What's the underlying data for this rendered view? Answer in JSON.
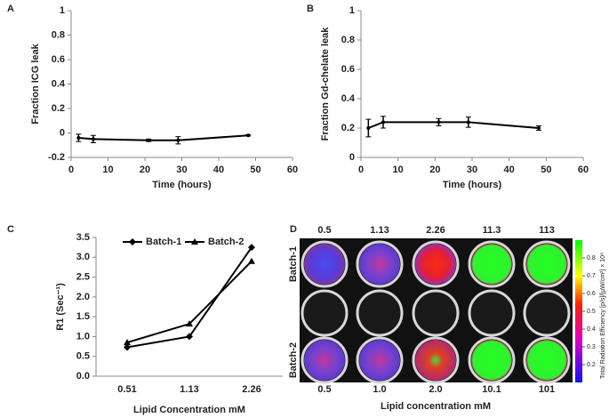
{
  "chart_data": [
    {
      "type": "line",
      "panel": "A",
      "ylabel": "Fraction ICG leak",
      "xlabel": "Time (hours)",
      "x": [
        2,
        6,
        21,
        29,
        48
      ],
      "series": [
        {
          "color": "#000000",
          "values": [
            -0.04,
            -0.05,
            -0.06,
            -0.06,
            -0.02
          ],
          "errors": [
            0.03,
            0.03,
            0.01,
            0.03,
            0.005
          ]
        }
      ],
      "xlim": [
        0,
        60
      ],
      "xticks": [
        0,
        10,
        20,
        30,
        40,
        50,
        60
      ],
      "ylim": [
        -0.2,
        1
      ],
      "yticks": [
        -0.2,
        0,
        0.2,
        0.4,
        0.6,
        0.8,
        1
      ]
    },
    {
      "type": "line",
      "panel": "B",
      "ylabel": "Fraction Gd-chelate leak",
      "xlabel": "Time (hours)",
      "x": [
        2,
        6,
        21,
        29,
        48
      ],
      "series": [
        {
          "color": "#000000",
          "values": [
            0.2,
            0.24,
            0.24,
            0.24,
            0.2
          ],
          "errors": [
            0.06,
            0.04,
            0.025,
            0.035,
            0.015
          ]
        }
      ],
      "xlim": [
        0,
        60
      ],
      "xticks": [
        0,
        10,
        20,
        30,
        40,
        50,
        60
      ],
      "ylim": [
        0,
        1
      ],
      "yticks": [
        0,
        0.2,
        0.4,
        0.6,
        0.8,
        1
      ]
    },
    {
      "type": "line",
      "panel": "C",
      "ylabel": "R1 (Sec⁻¹)",
      "xlabel": "Lipid Concentration mM",
      "categories": [
        "0.51",
        "1.13",
        "2.26"
      ],
      "series": [
        {
          "name": "Batch-1",
          "color": "#000000",
          "marker": "diamond",
          "values": [
            0.73,
            1.0,
            3.25
          ]
        },
        {
          "name": "Batch-2",
          "color": "#000000",
          "marker": "triangle",
          "values": [
            0.85,
            1.32,
            2.9
          ]
        }
      ],
      "ylim": [
        0,
        3.5
      ],
      "yticks": [
        {
          "value": 0,
          "label": "0.0"
        },
        {
          "value": 0.5,
          "label": "0.5"
        },
        {
          "value": 1,
          "label": "1.0"
        },
        {
          "value": 1.5,
          "label": "1.5"
        },
        {
          "value": 2,
          "label": "2.0"
        },
        {
          "value": 2.5,
          "label": "2.5"
        },
        {
          "value": 3,
          "label": "3.0"
        },
        {
          "value": 3.5,
          "label": "3.5"
        }
      ],
      "legend": "top-left"
    }
  ],
  "image": {
    "panel": "D",
    "row_labels": [
      "Batch-1",
      "Batch-2"
    ],
    "top_labels": [
      "0.5",
      "1.13",
      "2.26",
      "11.3",
      "113"
    ],
    "bottom_labels": [
      "0.5",
      "1.0",
      "2.0",
      "10.1",
      "101"
    ],
    "xlabel": "Lipid concentration mM",
    "colorbar_label": "Total Radiation Efficiency [p/s]/[µW/cm²] × 10⁸",
    "colorbar_lim": [
      0.1,
      0.9
    ],
    "colorbar_ticks": [
      0.2,
      0.3,
      0.4,
      0.5,
      0.6,
      0.7,
      0.8
    ]
  }
}
